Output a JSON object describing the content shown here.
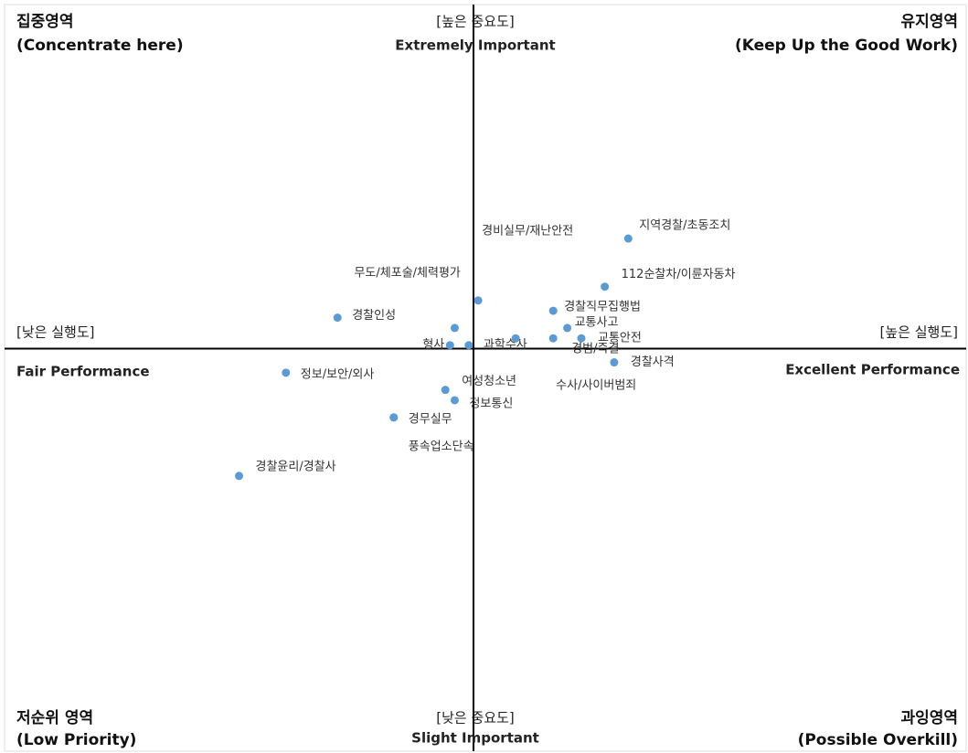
{
  "chart_data": {
    "type": "scatter",
    "color": "#5b9bd5",
    "xlim": [
      -1,
      1
    ],
    "ylim": [
      -1.17,
      1
    ],
    "quadrants": {
      "top_left": [
        "집중영역",
        "(Concentrate here)"
      ],
      "top_right": [
        "유지영역",
        "(Keep Up the Good Work)"
      ],
      "bottom_left": [
        "저순위 영역",
        "(Low Priority)"
      ],
      "bottom_right": [
        "과잉영역",
        "(Possible Overkill)"
      ]
    },
    "axis_labels": {
      "top": [
        "[높은 중요도]",
        "Extremely Important"
      ],
      "bottom": [
        "[낮은 중요도]",
        "Slight Important"
      ],
      "left": [
        "[낮은 실행도]",
        "Fair Performance"
      ],
      "right": [
        "[높은 실행도]",
        "Excellent Performance"
      ]
    },
    "labels": [
      "지역경찰/초동조치",
      "112순찰차/이륜자동차",
      "경비실무/재난안전",
      "경찰직무집행법",
      "교통사고",
      "교통안전",
      "경범/즉결",
      "수사/사이버범죄",
      "경찰사격",
      "과학수사",
      "형사",
      "무도/체포술/체력평가",
      "경찰인성",
      "정보/보안/외사",
      "여성청소년",
      "정보통신",
      "경무실무",
      "풍속업소단속",
      "경찰윤리/경찰사"
    ],
    "x": [
      0.33,
      0.28,
      0.01,
      0.17,
      0.2,
      0.23,
      0.17,
      0.09,
      0.3,
      -0.01,
      -0.05,
      -0.04,
      -0.29,
      -0.4,
      -0.06,
      -0.04,
      -0.17,
      -0.17,
      -0.5
    ],
    "y": [
      0.32,
      0.18,
      0.14,
      0.11,
      0.06,
      0.03,
      0.03,
      0.03,
      -0.04,
      0.01,
      0.01,
      0.06,
      0.09,
      -0.07,
      -0.12,
      -0.15,
      -0.2,
      -0.2,
      -0.37
    ]
  }
}
